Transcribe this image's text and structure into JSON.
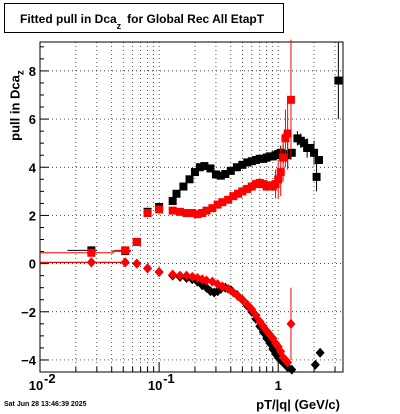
{
  "title": {
    "prefix": "Fitted pull in Dca",
    "sub": "z",
    "suffix": "for Global Rec All EtapT"
  },
  "ylabel": {
    "main": "pull in Dca",
    "sub": "z"
  },
  "xlabel": "pT/|q| (GeV/c)",
  "timestamp": "Sat Jun 28 13:46:39 2025",
  "colors": {
    "black_series": "#000000",
    "red_series": "#ff0000",
    "grid": "#000000"
  },
  "chart_data": {
    "type": "scatter",
    "xscale": "log",
    "xlim": [
      0.01,
      3.5
    ],
    "ylim": [
      -4.5,
      9.2
    ],
    "grid": true,
    "x_ticks": [
      {
        "value": 0.01,
        "label": "10",
        "exp": "-2"
      },
      {
        "value": 0.1,
        "label": "10",
        "exp": "-1"
      },
      {
        "value": 1,
        "label": "1",
        "exp": ""
      }
    ],
    "y_ticks": [
      {
        "value": -4,
        "label": "−4"
      },
      {
        "value": -2,
        "label": "−2"
      },
      {
        "value": 0,
        "label": "0"
      },
      {
        "value": 2,
        "label": "2"
      },
      {
        "value": 4,
        "label": "4"
      },
      {
        "value": 6,
        "label": "6"
      },
      {
        "value": 8,
        "label": "8"
      }
    ],
    "series": [
      {
        "color": "#000000",
        "marker": "square",
        "points": [
          {
            "x": 0.027,
            "y": 0.55,
            "xerr": [
              0.017,
              0.03
            ],
            "yerr": 0.12
          },
          {
            "x": 0.052,
            "y": 0.52,
            "xerr": [
              0.04,
              0.058
            ],
            "yerr": 0.1
          },
          {
            "x": 0.065,
            "y": 0.9
          },
          {
            "x": 0.08,
            "y": 2.15
          },
          {
            "x": 0.1,
            "y": 2.35
          },
          {
            "x": 0.13,
            "y": 2.6
          },
          {
            "x": 0.14,
            "y": 2.9
          },
          {
            "x": 0.16,
            "y": 3.2
          },
          {
            "x": 0.18,
            "y": 3.5
          },
          {
            "x": 0.2,
            "y": 3.8
          },
          {
            "x": 0.22,
            "y": 4.0
          },
          {
            "x": 0.24,
            "y": 4.05
          },
          {
            "x": 0.27,
            "y": 3.95
          },
          {
            "x": 0.3,
            "y": 3.7
          },
          {
            "x": 0.33,
            "y": 3.65
          },
          {
            "x": 0.36,
            "y": 3.72
          },
          {
            "x": 0.4,
            "y": 3.85
          },
          {
            "x": 0.45,
            "y": 4.0
          },
          {
            "x": 0.5,
            "y": 4.1
          },
          {
            "x": 0.55,
            "y": 4.2
          },
          {
            "x": 0.6,
            "y": 4.25
          },
          {
            "x": 0.65,
            "y": 4.3
          },
          {
            "x": 0.7,
            "y": 4.35
          },
          {
            "x": 0.75,
            "y": 4.35
          },
          {
            "x": 0.8,
            "y": 4.4
          },
          {
            "x": 0.85,
            "y": 4.45
          },
          {
            "x": 0.9,
            "y": 4.45
          },
          {
            "x": 0.95,
            "y": 4.5
          },
          {
            "x": 1.0,
            "y": 4.55
          },
          {
            "x": 1.05,
            "y": 4.6,
            "yerr": 0.3
          },
          {
            "x": 1.1,
            "y": 4.55,
            "yerr": 0.4
          },
          {
            "x": 1.2,
            "y": 4.5,
            "yerr": 0.5
          },
          {
            "x": 1.3,
            "y": 4.6
          },
          {
            "x": 1.45,
            "y": 5.2,
            "yerr": 0.3
          },
          {
            "x": 1.55,
            "y": 5.1,
            "yerr": 0.3
          },
          {
            "x": 1.65,
            "y": 5.0
          },
          {
            "x": 1.75,
            "y": 4.8,
            "yerr": 0.4
          },
          {
            "x": 1.85,
            "y": 4.8
          },
          {
            "x": 2.0,
            "y": 4.6,
            "yerr": 0.5
          },
          {
            "x": 2.1,
            "y": 3.6,
            "yerr": 0.6
          },
          {
            "x": 2.2,
            "y": 4.3
          },
          {
            "x": 3.2,
            "y": 7.6,
            "yerr": 1.6
          }
        ]
      },
      {
        "color": "#ff0000",
        "marker": "square",
        "points": [
          {
            "x": 0.027,
            "y": 0.45,
            "xerr": [
              0.01,
              0.042
            ],
            "yerr": 0.12
          },
          {
            "x": 0.052,
            "y": 0.55,
            "xerr": [
              0.042,
              0.058
            ],
            "yerr": 0.1
          },
          {
            "x": 0.065,
            "y": 0.9
          },
          {
            "x": 0.08,
            "y": 2.1
          },
          {
            "x": 0.1,
            "y": 2.25
          },
          {
            "x": 0.13,
            "y": 2.2
          },
          {
            "x": 0.15,
            "y": 2.15
          },
          {
            "x": 0.17,
            "y": 2.1
          },
          {
            "x": 0.19,
            "y": 2.1
          },
          {
            "x": 0.21,
            "y": 2.05
          },
          {
            "x": 0.23,
            "y": 2.1
          },
          {
            "x": 0.25,
            "y": 2.2
          },
          {
            "x": 0.28,
            "y": 2.3
          },
          {
            "x": 0.31,
            "y": 2.45
          },
          {
            "x": 0.34,
            "y": 2.55
          },
          {
            "x": 0.38,
            "y": 2.65
          },
          {
            "x": 0.42,
            "y": 2.8
          },
          {
            "x": 0.46,
            "y": 2.9
          },
          {
            "x": 0.5,
            "y": 3.0
          },
          {
            "x": 0.55,
            "y": 3.1
          },
          {
            "x": 0.6,
            "y": 3.2
          },
          {
            "x": 0.65,
            "y": 3.3
          },
          {
            "x": 0.7,
            "y": 3.35
          },
          {
            "x": 0.75,
            "y": 3.3
          },
          {
            "x": 0.8,
            "y": 3.2
          },
          {
            "x": 0.85,
            "y": 3.25
          },
          {
            "x": 0.9,
            "y": 3.2
          },
          {
            "x": 0.95,
            "y": 3.3,
            "yerr": 0.6
          },
          {
            "x": 1.0,
            "y": 3.5,
            "yerr": 0.8
          },
          {
            "x": 1.05,
            "y": 3.8,
            "yerr": 1.0
          },
          {
            "x": 1.1,
            "y": 4.4,
            "yerr": 1.0
          },
          {
            "x": 1.15,
            "y": 5.2,
            "yerr": 1.2
          },
          {
            "x": 1.2,
            "y": 5.4,
            "yerr": 1.5
          },
          {
            "x": 1.28,
            "y": 6.8,
            "yerr": 2.5
          }
        ]
      },
      {
        "color": "#000000",
        "marker": "diamond",
        "points": [
          {
            "x": 0.027,
            "y": 0.05,
            "xerr": [
              0.01,
              0.052
            ],
            "yerr": 0.08
          },
          {
            "x": 0.052,
            "y": 0.05
          },
          {
            "x": 0.065,
            "y": 0.0
          },
          {
            "x": 0.08,
            "y": -0.2
          },
          {
            "x": 0.1,
            "y": -0.35
          },
          {
            "x": 0.13,
            "y": -0.5
          },
          {
            "x": 0.15,
            "y": -0.55
          },
          {
            "x": 0.17,
            "y": -0.6
          },
          {
            "x": 0.19,
            "y": -0.65
          },
          {
            "x": 0.21,
            "y": -0.75
          },
          {
            "x": 0.23,
            "y": -0.9
          },
          {
            "x": 0.25,
            "y": -1.0
          },
          {
            "x": 0.27,
            "y": -1.15
          },
          {
            "x": 0.29,
            "y": -1.2
          },
          {
            "x": 0.31,
            "y": -1.15
          },
          {
            "x": 0.33,
            "y": -1.05
          },
          {
            "x": 0.36,
            "y": -1.0
          },
          {
            "x": 0.4,
            "y": -1.1
          },
          {
            "x": 0.45,
            "y": -1.3
          },
          {
            "x": 0.5,
            "y": -1.5
          },
          {
            "x": 0.55,
            "y": -1.75
          },
          {
            "x": 0.6,
            "y": -2.0
          },
          {
            "x": 0.65,
            "y": -2.3
          },
          {
            "x": 0.7,
            "y": -2.6
          },
          {
            "x": 0.75,
            "y": -2.85
          },
          {
            "x": 0.8,
            "y": -3.1
          },
          {
            "x": 0.85,
            "y": -3.3
          },
          {
            "x": 0.9,
            "y": -3.55
          },
          {
            "x": 0.95,
            "y": -3.75
          },
          {
            "x": 1.0,
            "y": -3.9
          },
          {
            "x": 1.05,
            "y": -4.0
          },
          {
            "x": 1.1,
            "y": -4.1
          },
          {
            "x": 1.15,
            "y": -4.2
          },
          {
            "x": 1.2,
            "y": -4.3
          },
          {
            "x": 1.3,
            "y": -4.4
          },
          {
            "x": 2.05,
            "y": -4.2
          },
          {
            "x": 2.25,
            "y": -3.7
          }
        ]
      },
      {
        "color": "#ff0000",
        "marker": "diamond",
        "points": [
          {
            "x": 0.027,
            "y": 0.05,
            "xerr": [
              0.01,
              0.052
            ],
            "yerr": 0.08
          },
          {
            "x": 0.052,
            "y": 0.05
          },
          {
            "x": 0.065,
            "y": 0.0
          },
          {
            "x": 0.08,
            "y": -0.2
          },
          {
            "x": 0.1,
            "y": -0.35
          },
          {
            "x": 0.13,
            "y": -0.45
          },
          {
            "x": 0.15,
            "y": -0.5
          },
          {
            "x": 0.17,
            "y": -0.5
          },
          {
            "x": 0.19,
            "y": -0.55
          },
          {
            "x": 0.21,
            "y": -0.6
          },
          {
            "x": 0.23,
            "y": -0.65
          },
          {
            "x": 0.25,
            "y": -0.7
          },
          {
            "x": 0.28,
            "y": -0.75
          },
          {
            "x": 0.31,
            "y": -0.85
          },
          {
            "x": 0.34,
            "y": -0.95
          },
          {
            "x": 0.38,
            "y": -1.05
          },
          {
            "x": 0.42,
            "y": -1.2
          },
          {
            "x": 0.46,
            "y": -1.35
          },
          {
            "x": 0.5,
            "y": -1.5
          },
          {
            "x": 0.55,
            "y": -1.7
          },
          {
            "x": 0.6,
            "y": -1.9
          },
          {
            "x": 0.65,
            "y": -2.15
          },
          {
            "x": 0.7,
            "y": -2.4
          },
          {
            "x": 0.75,
            "y": -2.6
          },
          {
            "x": 0.8,
            "y": -2.8
          },
          {
            "x": 0.85,
            "y": -2.95
          },
          {
            "x": 0.9,
            "y": -3.1
          },
          {
            "x": 0.95,
            "y": -3.3
          },
          {
            "x": 1.0,
            "y": -3.45
          },
          {
            "x": 1.05,
            "y": -3.65
          },
          {
            "x": 1.1,
            "y": -3.9
          },
          {
            "x": 1.15,
            "y": -4.0
          },
          {
            "x": 1.2,
            "y": -4.1
          },
          {
            "x": 1.28,
            "y": -2.5,
            "yerr": 1.5
          }
        ]
      }
    ]
  }
}
